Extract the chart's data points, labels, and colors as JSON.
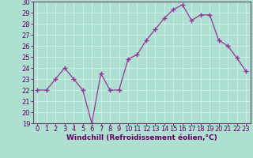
{
  "x": [
    0,
    1,
    2,
    3,
    4,
    5,
    6,
    7,
    8,
    9,
    10,
    11,
    12,
    13,
    14,
    15,
    16,
    17,
    18,
    19,
    20,
    21,
    22,
    23
  ],
  "y": [
    22,
    22,
    23,
    24,
    23,
    22,
    19,
    23.5,
    22,
    22,
    24.8,
    25.2,
    26.5,
    27.5,
    28.5,
    29.3,
    29.7,
    28.3,
    28.8,
    28.8,
    26.5,
    26,
    24.9,
    23.7
  ],
  "line_color": "#993399",
  "marker_color": "#993399",
  "bg_color": "#aee0d2",
  "grid_color": "#cceeee",
  "border_color": "#664466",
  "xlabel": "Windchill (Refroidissement éolien,°C)",
  "ylim": [
    19,
    30
  ],
  "xlim": [
    -0.5,
    23.5
  ],
  "yticks": [
    19,
    20,
    21,
    22,
    23,
    24,
    25,
    26,
    27,
    28,
    29,
    30
  ],
  "xticks": [
    0,
    1,
    2,
    3,
    4,
    5,
    6,
    7,
    8,
    9,
    10,
    11,
    12,
    13,
    14,
    15,
    16,
    17,
    18,
    19,
    20,
    21,
    22,
    23
  ],
  "axis_label_color": "#660066",
  "tick_color": "#660066",
  "font_size_label": 6.5,
  "font_size_tick": 6.0
}
